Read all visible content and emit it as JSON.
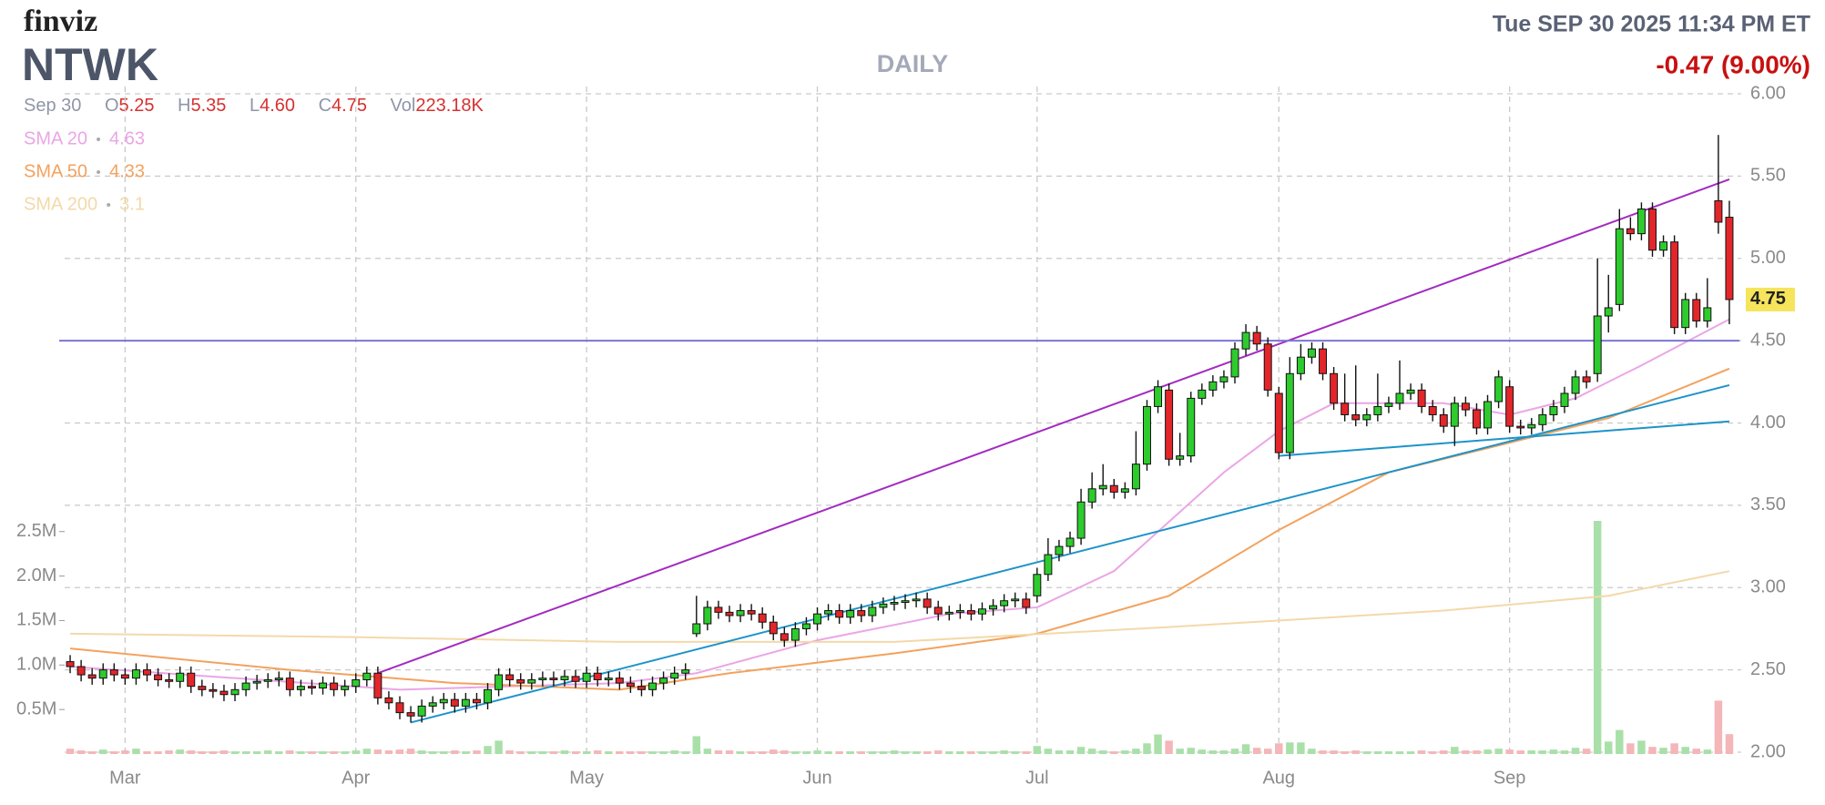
{
  "header": {
    "logo": "finviz",
    "ticker": "NTWK",
    "timeframe": "DAILY",
    "datetime": "Tue SEP 30 2025 11:34 PM ET",
    "change": "-0.47 (9.00%)"
  },
  "ohlc_info": {
    "date": "Sep 30",
    "items": [
      {
        "label": "O",
        "value": "5.25"
      },
      {
        "label": "H",
        "value": "5.35"
      },
      {
        "label": "L",
        "value": "4.60"
      },
      {
        "label": "C",
        "value": "4.75"
      },
      {
        "label": "Vol",
        "value": "223.18K"
      }
    ]
  },
  "chart_data": {
    "type": "candlestick",
    "up_color": "#2ecb2e",
    "down_color": "#e3262a",
    "volume_up_color": "#a9e0a9",
    "volume_down_color": "#f4b6b8",
    "grid": true,
    "ylim": [
      2,
      6
    ],
    "yticks": [
      {
        "value": 2,
        "label": "2.00"
      },
      {
        "value": 2.5,
        "label": "2.50"
      },
      {
        "value": 3,
        "label": "3.00"
      },
      {
        "value": 3.5,
        "label": "3.50"
      },
      {
        "value": 4,
        "label": "4.00"
      },
      {
        "value": 4.5,
        "label": "4.50"
      },
      {
        "value": 5,
        "label": "5.00"
      },
      {
        "value": 5.5,
        "label": "5.50"
      },
      {
        "value": 6,
        "label": "6.00"
      }
    ],
    "y2lim": [
      0,
      7420000
    ],
    "y2ticks": [
      {
        "value": 500000,
        "label": "0.5M"
      },
      {
        "value": 1000000,
        "label": "1.0M"
      },
      {
        "value": 1500000,
        "label": "1.5M"
      },
      {
        "value": 2000000,
        "label": "2.0M"
      },
      {
        "value": 2500000,
        "label": "2.5M"
      }
    ],
    "categories": [
      null,
      null,
      null,
      null,
      null,
      "Mar",
      null,
      null,
      null,
      null,
      null,
      null,
      null,
      null,
      null,
      null,
      null,
      null,
      null,
      null,
      null,
      null,
      null,
      null,
      null,
      null,
      "Apr",
      null,
      null,
      null,
      null,
      null,
      null,
      null,
      null,
      null,
      null,
      null,
      null,
      null,
      null,
      null,
      null,
      null,
      null,
      null,
      null,
      "May",
      null,
      null,
      null,
      null,
      null,
      null,
      null,
      null,
      null,
      null,
      null,
      null,
      null,
      null,
      null,
      null,
      null,
      null,
      null,
      null,
      "Jun",
      null,
      null,
      null,
      null,
      null,
      null,
      null,
      null,
      null,
      null,
      null,
      null,
      null,
      null,
      null,
      null,
      null,
      null,
      null,
      "Jul",
      null,
      null,
      null,
      null,
      null,
      null,
      null,
      null,
      null,
      null,
      null,
      null,
      null,
      null,
      null,
      null,
      null,
      null,
      null,
      null,
      null,
      "Aug",
      null,
      null,
      null,
      null,
      null,
      null,
      null,
      null,
      null,
      null,
      null,
      null,
      null,
      null,
      null,
      null,
      null,
      null,
      null,
      null,
      "Sep",
      null,
      null,
      null,
      null,
      null,
      null,
      null,
      null,
      null,
      null,
      null,
      null,
      null,
      null,
      null,
      null,
      null,
      null,
      null,
      null
    ],
    "open": [
      2.55,
      2.52,
      2.47,
      2.45,
      2.5,
      2.47,
      2.45,
      2.5,
      2.47,
      2.44,
      2.43,
      2.48,
      2.4,
      2.38,
      2.37,
      2.35,
      2.38,
      2.42,
      2.43,
      2.44,
      2.45,
      2.38,
      2.4,
      2.39,
      2.42,
      2.38,
      2.4,
      2.44,
      2.48,
      2.33,
      2.3,
      2.24,
      2.22,
      2.28,
      2.3,
      2.32,
      2.28,
      2.32,
      2.3,
      2.38,
      2.47,
      2.44,
      2.42,
      2.44,
      2.45,
      2.44,
      2.46,
      2.43,
      2.48,
      2.44,
      2.45,
      2.42,
      2.4,
      2.38,
      2.42,
      2.45,
      2.48,
      2.72,
      2.78,
      2.88,
      2.85,
      2.83,
      2.86,
      2.84,
      2.79,
      2.72,
      2.68,
      2.75,
      2.78,
      2.84,
      2.86,
      2.82,
      2.86,
      2.83,
      2.88,
      2.9,
      2.91,
      2.92,
      2.93,
      2.88,
      2.84,
      2.85,
      2.86,
      2.84,
      2.87,
      2.89,
      2.92,
      2.93,
      2.95,
      3.08,
      3.2,
      3.25,
      3.3,
      3.52,
      3.6,
      3.62,
      3.58,
      3.6,
      3.75,
      4.1,
      4.2,
      3.78,
      3.8,
      4.15,
      4.2,
      4.25,
      4.28,
      4.45,
      4.55,
      4.48,
      4.18,
      3.82,
      4.3,
      4.4,
      4.45,
      4.3,
      4.12,
      4.05,
      4.02,
      4.05,
      4.1,
      4.12,
      4.18,
      4.2,
      4.1,
      4.05,
      3.98,
      4.12,
      4.08,
      3.97,
      4.13,
      4.22,
      3.98,
      3.97,
      3.99,
      4.05,
      4.1,
      4.18,
      4.28,
      4.3,
      4.65,
      4.72,
      5.18,
      5.15,
      5.3,
      5.05,
      5.1,
      4.58,
      4.75,
      4.62,
      5.35,
      5.25
    ],
    "high": [
      2.59,
      2.56,
      2.51,
      2.54,
      2.54,
      2.51,
      2.54,
      2.54,
      2.51,
      2.48,
      2.52,
      2.52,
      2.44,
      2.42,
      2.41,
      2.42,
      2.46,
      2.47,
      2.48,
      2.49,
      2.49,
      2.44,
      2.44,
      2.46,
      2.46,
      2.44,
      2.48,
      2.52,
      2.52,
      2.37,
      2.34,
      2.28,
      2.32,
      2.34,
      2.36,
      2.36,
      2.36,
      2.36,
      2.42,
      2.51,
      2.51,
      2.48,
      2.48,
      2.49,
      2.49,
      2.5,
      2.5,
      2.52,
      2.52,
      2.49,
      2.49,
      2.46,
      2.44,
      2.46,
      2.49,
      2.52,
      2.54,
      2.95,
      2.92,
      2.92,
      2.89,
      2.9,
      2.9,
      2.88,
      2.83,
      2.76,
      2.79,
      2.82,
      2.88,
      2.9,
      2.9,
      2.9,
      2.9,
      2.92,
      2.94,
      2.95,
      2.96,
      2.97,
      2.97,
      2.92,
      2.89,
      2.9,
      2.9,
      2.91,
      2.93,
      2.96,
      2.97,
      2.97,
      3.12,
      3.3,
      3.29,
      3.34,
      3.6,
      3.7,
      3.75,
      3.66,
      3.64,
      3.95,
      4.14,
      4.26,
      4.24,
      3.94,
      4.19,
      4.24,
      4.29,
      4.32,
      4.49,
      4.6,
      4.59,
      4.52,
      4.22,
      4.4,
      4.48,
      4.49,
      4.49,
      4.34,
      4.3,
      4.35,
      4.09,
      4.3,
      4.16,
      4.38,
      4.24,
      4.24,
      4.14,
      4.09,
      4.16,
      4.16,
      4.12,
      4.17,
      4.32,
      4.26,
      4.02,
      4.03,
      4.09,
      4.14,
      4.22,
      4.32,
      4.32,
      5.0,
      4.9,
      5.3,
      5.25,
      5.34,
      5.34,
      5.14,
      5.14,
      4.79,
      4.79,
      4.88,
      5.75,
      5.35
    ],
    "low": [
      2.48,
      2.43,
      2.41,
      2.41,
      2.43,
      2.41,
      2.41,
      2.43,
      2.4,
      2.39,
      2.39,
      2.36,
      2.34,
      2.33,
      2.31,
      2.31,
      2.34,
      2.38,
      2.39,
      2.4,
      2.34,
      2.34,
      2.35,
      2.35,
      2.34,
      2.34,
      2.36,
      2.4,
      2.29,
      2.26,
      2.2,
      2.18,
      2.18,
      2.24,
      2.26,
      2.24,
      2.24,
      2.26,
      2.26,
      2.34,
      2.4,
      2.38,
      2.38,
      2.4,
      2.4,
      2.4,
      2.39,
      2.39,
      2.4,
      2.4,
      2.38,
      2.36,
      2.34,
      2.34,
      2.38,
      2.41,
      2.44,
      2.7,
      2.74,
      2.81,
      2.79,
      2.79,
      2.8,
      2.75,
      2.68,
      2.64,
      2.64,
      2.71,
      2.74,
      2.8,
      2.78,
      2.78,
      2.79,
      2.79,
      2.84,
      2.86,
      2.87,
      2.88,
      2.84,
      2.8,
      2.8,
      2.81,
      2.8,
      2.8,
      2.83,
      2.85,
      2.88,
      2.84,
      2.91,
      3.04,
      3.16,
      3.21,
      3.26,
      3.48,
      3.56,
      3.54,
      3.54,
      3.56,
      3.71,
      4.06,
      3.74,
      3.74,
      3.76,
      4.11,
      4.16,
      4.21,
      4.24,
      4.41,
      4.44,
      4.16,
      3.78,
      3.78,
      4.26,
      4.36,
      4.26,
      4.08,
      4.01,
      3.98,
      3.98,
      4.01,
      4.06,
      4.08,
      4.14,
      4.06,
      4.01,
      3.94,
      3.86,
      4.04,
      3.93,
      3.93,
      4.09,
      3.94,
      3.93,
      3.93,
      3.95,
      4.01,
      4.06,
      4.14,
      4.21,
      4.25,
      4.55,
      4.68,
      5.11,
      5.11,
      5.01,
      5.01,
      4.54,
      4.54,
      4.58,
      4.58,
      5.15,
      4.6
    ],
    "close": [
      2.52,
      2.47,
      2.45,
      2.5,
      2.47,
      2.45,
      2.5,
      2.47,
      2.44,
      2.43,
      2.48,
      2.4,
      2.38,
      2.37,
      2.35,
      2.38,
      2.42,
      2.43,
      2.44,
      2.45,
      2.38,
      2.4,
      2.39,
      2.42,
      2.38,
      2.4,
      2.44,
      2.48,
      2.33,
      2.3,
      2.24,
      2.22,
      2.28,
      2.3,
      2.32,
      2.28,
      2.32,
      2.3,
      2.38,
      2.47,
      2.44,
      2.42,
      2.44,
      2.45,
      2.44,
      2.46,
      2.43,
      2.48,
      2.44,
      2.45,
      2.42,
      2.4,
      2.38,
      2.42,
      2.45,
      2.48,
      2.5,
      2.78,
      2.88,
      2.85,
      2.83,
      2.86,
      2.84,
      2.79,
      2.72,
      2.68,
      2.75,
      2.78,
      2.84,
      2.86,
      2.82,
      2.86,
      2.83,
      2.88,
      2.9,
      2.91,
      2.92,
      2.93,
      2.88,
      2.84,
      2.85,
      2.86,
      2.84,
      2.87,
      2.89,
      2.92,
      2.93,
      2.88,
      3.08,
      3.2,
      3.25,
      3.3,
      3.52,
      3.6,
      3.62,
      3.58,
      3.6,
      3.75,
      4.1,
      4.22,
      3.78,
      3.8,
      4.15,
      4.2,
      4.25,
      4.28,
      4.45,
      4.55,
      4.48,
      4.2,
      3.82,
      4.3,
      4.4,
      4.45,
      4.3,
      4.12,
      4.05,
      4.02,
      4.05,
      4.1,
      4.12,
      4.18,
      4.2,
      4.1,
      4.05,
      3.98,
      4.12,
      4.08,
      3.97,
      4.13,
      4.28,
      3.98,
      3.97,
      3.99,
      4.05,
      4.1,
      4.18,
      4.28,
      4.25,
      4.65,
      4.7,
      5.18,
      5.15,
      5.3,
      5.05,
      5.1,
      4.58,
      4.75,
      4.62,
      4.7,
      5.22,
      4.75
    ],
    "volume": [
      60000,
      40000,
      30000,
      50000,
      30000,
      40000,
      60000,
      30000,
      30000,
      40000,
      50000,
      40000,
      30000,
      30000,
      40000,
      30000,
      30000,
      30000,
      40000,
      30000,
      40000,
      30000,
      30000,
      30000,
      30000,
      30000,
      40000,
      60000,
      50000,
      40000,
      50000,
      60000,
      40000,
      30000,
      30000,
      40000,
      30000,
      40000,
      90000,
      150000,
      40000,
      30000,
      30000,
      30000,
      30000,
      40000,
      30000,
      30000,
      40000,
      30000,
      30000,
      30000,
      30000,
      30000,
      30000,
      40000,
      30000,
      200000,
      60000,
      40000,
      40000,
      30000,
      30000,
      30000,
      50000,
      40000,
      30000,
      30000,
      40000,
      30000,
      30000,
      30000,
      30000,
      30000,
      30000,
      40000,
      30000,
      30000,
      30000,
      40000,
      30000,
      30000,
      30000,
      30000,
      30000,
      40000,
      30000,
      30000,
      90000,
      60000,
      40000,
      40000,
      80000,
      60000,
      40000,
      30000,
      40000,
      60000,
      120000,
      220000,
      150000,
      60000,
      70000,
      50000,
      40000,
      40000,
      60000,
      110000,
      70000,
      60000,
      120000,
      130000,
      130000,
      60000,
      40000,
      40000,
      30000,
      40000,
      30000,
      30000,
      30000,
      30000,
      30000,
      40000,
      30000,
      40000,
      80000,
      40000,
      40000,
      50000,
      60000,
      50000,
      40000,
      40000,
      40000,
      50000,
      40000,
      70000,
      60000,
      2620000,
      140000,
      270000,
      120000,
      150000,
      80000,
      70000,
      120000,
      80000,
      60000,
      50000,
      600000,
      223180
    ],
    "series": [
      {
        "name": "SMA 20",
        "color": "#eaa6e6",
        "x": [
          0,
          15,
          30,
          50,
          57,
          68,
          80,
          88,
          95,
          100,
          105,
          110,
          115,
          125,
          131,
          137,
          143,
          151
        ],
        "values": [
          2.52,
          2.45,
          2.38,
          2.42,
          2.48,
          2.68,
          2.84,
          2.88,
          3.1,
          3.4,
          3.7,
          3.95,
          4.12,
          4.12,
          4.05,
          4.15,
          4.35,
          4.63
        ]
      },
      {
        "name": "SMA 50",
        "color": "#f3a25e",
        "x": [
          0,
          20,
          35,
          50,
          60,
          75,
          88,
          100,
          110,
          120,
          131,
          140,
          151
        ],
        "values": [
          2.63,
          2.5,
          2.42,
          2.38,
          2.48,
          2.6,
          2.72,
          2.95,
          3.35,
          3.7,
          3.88,
          4.03,
          4.33
        ]
      },
      {
        "name": "SMA 200",
        "color": "#f3d9a9",
        "x": [
          0,
          25,
          50,
          75,
          100,
          125,
          140,
          151
        ],
        "values": [
          2.72,
          2.7,
          2.67,
          2.67,
          2.76,
          2.86,
          2.95,
          3.1
        ]
      }
    ],
    "trendlines": [
      {
        "color": "#a32bc0",
        "x": [
          28,
          151
        ],
        "values": [
          2.48,
          5.48
        ]
      },
      {
        "color": "#1d93c9",
        "x": [
          31,
          151
        ],
        "values": [
          2.18,
          4.23
        ]
      },
      {
        "color": "#1d93c9",
        "x": [
          110,
          151
        ],
        "values": [
          3.8,
          4.01
        ]
      },
      {
        "color": "#7b74d6",
        "x": [
          -1,
          152
        ],
        "values": [
          4.5,
          4.5
        ]
      }
    ],
    "last_price_color": "#f6e45c"
  }
}
